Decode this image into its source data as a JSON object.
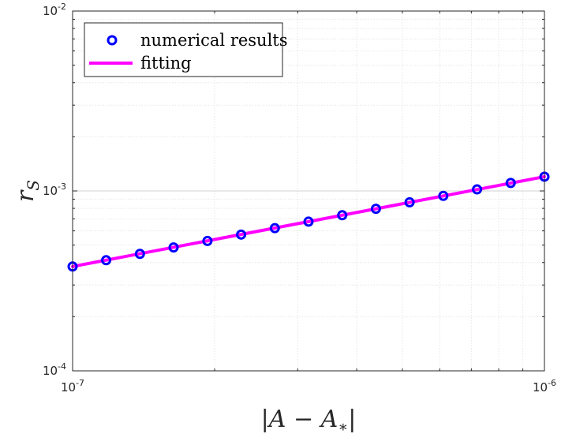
{
  "chart_data": {
    "type": "scatter",
    "x_scale": "log",
    "y_scale": "log",
    "xlim": [
      1e-07,
      1e-06
    ],
    "ylim": [
      0.0001,
      0.01
    ],
    "grid": true,
    "minor_grid": true,
    "xlabel": "|A − A*|",
    "ylabel": "rS",
    "x_ticks": [
      {
        "value": 1e-07,
        "base": "10",
        "exp": "-7"
      },
      {
        "value": 1e-06,
        "base": "10",
        "exp": "-6"
      }
    ],
    "y_ticks": [
      {
        "value": 0.0001,
        "base": "10",
        "exp": "-4"
      },
      {
        "value": 0.001,
        "base": "10",
        "exp": "-3"
      },
      {
        "value": 0.01,
        "base": "10",
        "exp": "-2"
      }
    ],
    "legend_position": "top-left",
    "series": [
      {
        "name": "numerical results",
        "kind": "marker",
        "marker": "circle",
        "color": "#0000ff",
        "x": [
          1e-07,
          1.178e-07,
          1.389e-07,
          1.637e-07,
          1.931e-07,
          2.276e-07,
          2.683e-07,
          3.162e-07,
          3.728e-07,
          4.394e-07,
          5.179e-07,
          6.105e-07,
          7.197e-07,
          8.483e-07,
          1e-06
        ],
        "y": [
          0.00038,
          0.000412,
          0.000447,
          0.000485,
          0.000527,
          0.000572,
          0.000621,
          0.000675,
          0.000733,
          0.000796,
          0.000865,
          0.000939,
          0.00102,
          0.001108,
          0.0012
        ]
      },
      {
        "name": "fitting",
        "kind": "line",
        "color": "#ff00ff",
        "x": [
          1e-07,
          1e-06
        ],
        "y": [
          0.00038,
          0.0012
        ]
      }
    ]
  }
}
